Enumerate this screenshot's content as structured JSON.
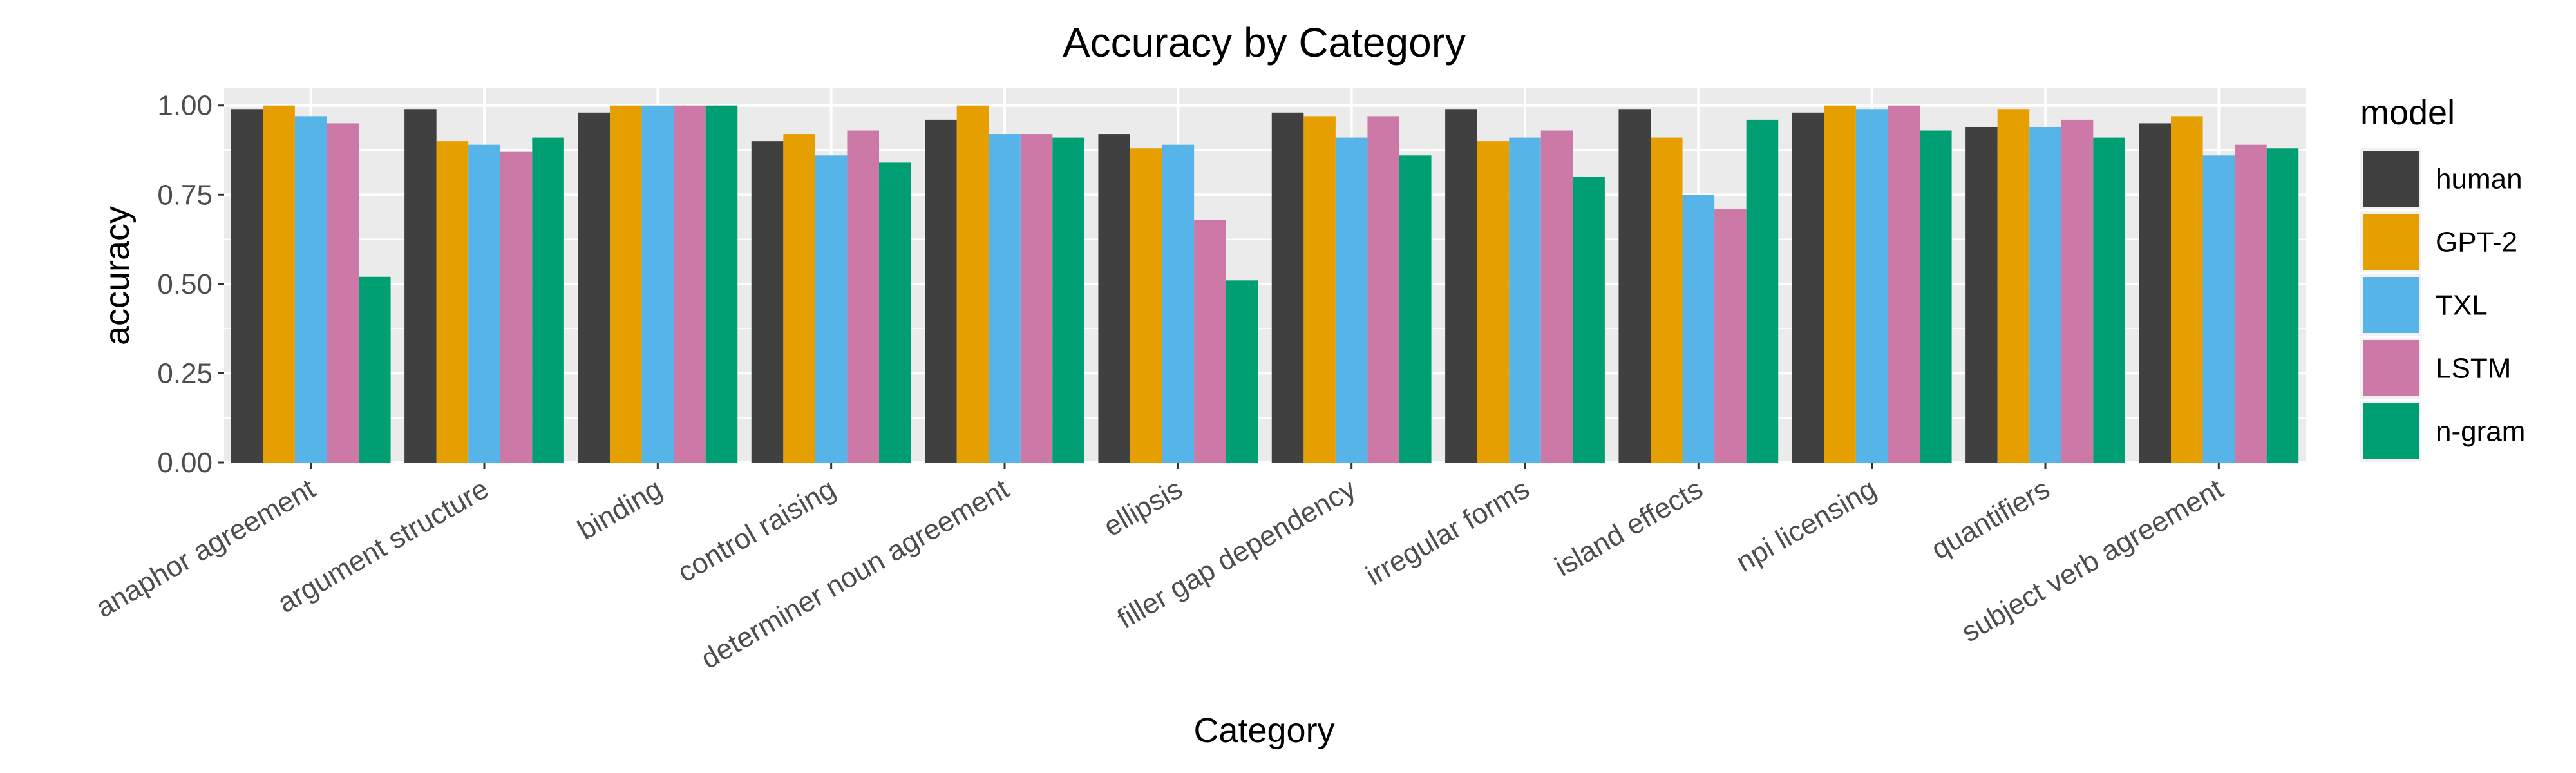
{
  "chart_data": {
    "type": "bar",
    "title": "Accuracy by Category",
    "xlabel": "Category",
    "ylabel": "accuracy",
    "ylim": [
      0,
      1.05
    ],
    "yticks": [
      "0.00",
      "0.25",
      "0.50",
      "0.75",
      "1.00"
    ],
    "ytick_values": [
      0,
      0.25,
      0.5,
      0.75,
      1.0
    ],
    "grid": true,
    "legend_title": "model",
    "legend_position": "right",
    "categories": [
      "anaphor agreement",
      "argument structure",
      "binding",
      "control raising",
      "determiner noun agreement",
      "ellipsis",
      "filler gap dependency",
      "irregular forms",
      "island effects",
      "npi licensing",
      "quantifiers",
      "subject verb agreement"
    ],
    "series": [
      {
        "name": "human",
        "color": "#404040",
        "values": [
          0.99,
          0.99,
          0.98,
          0.9,
          0.96,
          0.92,
          0.98,
          0.99,
          0.99,
          0.98,
          0.94,
          0.95
        ]
      },
      {
        "name": "GPT-2",
        "color": "#E69F00",
        "values": [
          1.0,
          0.9,
          1.0,
          0.92,
          1.0,
          0.88,
          0.97,
          0.9,
          0.91,
          1.0,
          0.99,
          0.97
        ]
      },
      {
        "name": "TXL",
        "color": "#56B4E9",
        "values": [
          0.97,
          0.89,
          1.0,
          0.86,
          0.92,
          0.89,
          0.91,
          0.91,
          0.75,
          0.99,
          0.94,
          0.86
        ]
      },
      {
        "name": "LSTM",
        "color": "#CC79A7",
        "values": [
          0.95,
          0.87,
          1.0,
          0.93,
          0.92,
          0.68,
          0.97,
          0.93,
          0.71,
          1.0,
          0.96,
          0.89
        ]
      },
      {
        "name": "n-gram",
        "color": "#009E73",
        "values": [
          0.52,
          0.91,
          1.0,
          0.84,
          0.91,
          0.51,
          0.86,
          0.8,
          0.96,
          0.93,
          0.91,
          0.88
        ]
      }
    ],
    "panel_background": "#EBEBEB",
    "grid_color": "#FFFFFF"
  }
}
